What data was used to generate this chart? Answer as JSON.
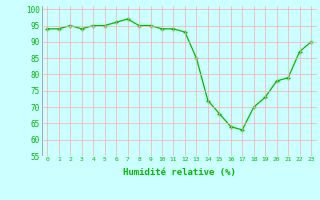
{
  "x": [
    0,
    1,
    2,
    3,
    4,
    5,
    6,
    7,
    8,
    9,
    10,
    11,
    12,
    13,
    14,
    15,
    16,
    17,
    18,
    19,
    20,
    21,
    22,
    23
  ],
  "y": [
    94,
    94,
    95,
    94,
    95,
    95,
    96,
    97,
    95,
    95,
    94,
    94,
    93,
    85,
    72,
    68,
    64,
    63,
    70,
    73,
    78,
    79,
    87,
    90
  ],
  "line_color": "#00bb00",
  "marker_color": "#00bb00",
  "bg_color": "#ccffff",
  "grid_color": "#ffaaaa",
  "xlabel": "Humidité relative (%)",
  "xlabel_color": "#00bb00",
  "ylim": [
    55,
    101
  ],
  "yticks": [
    55,
    60,
    65,
    70,
    75,
    80,
    85,
    90,
    95,
    100
  ],
  "xticks": [
    0,
    1,
    2,
    3,
    4,
    5,
    6,
    7,
    8,
    9,
    10,
    11,
    12,
    13,
    14,
    15,
    16,
    17,
    18,
    19,
    20,
    21,
    22,
    23
  ],
  "figsize": [
    3.2,
    2.0
  ],
  "dpi": 100
}
